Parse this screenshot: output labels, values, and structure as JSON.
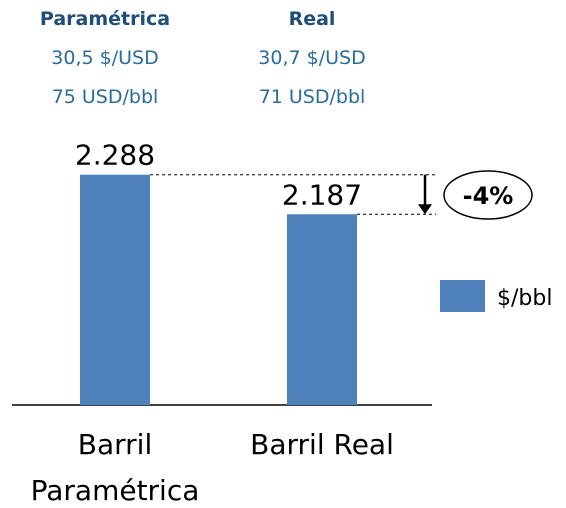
{
  "chart_data": {
    "type": "bar",
    "header": [
      {
        "title": "Paramétrica",
        "lines": [
          "30,5 $/USD",
          "75 USD/bbl"
        ]
      },
      {
        "title": "Real",
        "lines": [
          "30,7 $/USD",
          "71 USD/bbl"
        ]
      }
    ],
    "categories": [
      "Barril Paramétrica",
      "Barril Real"
    ],
    "series": [
      {
        "name": "$/bbl",
        "color": "#4f81bd",
        "values": [
          2288,
          2187
        ],
        "value_labels": [
          "2.288",
          "2.187"
        ]
      }
    ],
    "ylim": [
      1700,
      2300
    ],
    "annotation": "-4%"
  }
}
